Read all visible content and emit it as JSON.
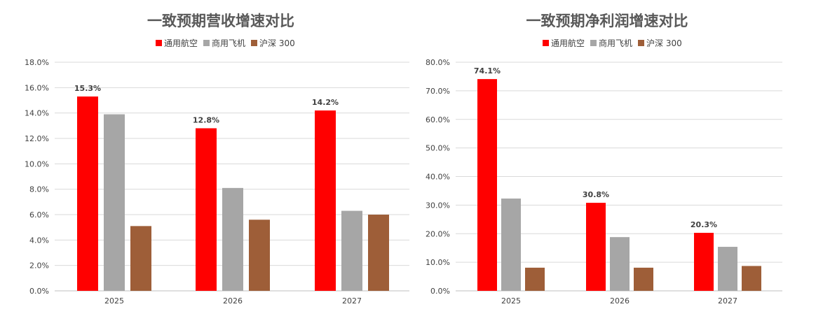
{
  "chart_data": [
    {
      "type": "bar",
      "title": "一致预期营收增速对比",
      "categories": [
        "2025",
        "2026",
        "2027"
      ],
      "series": [
        {
          "name": "通用航空",
          "values": [
            15.3,
            12.8,
            14.2
          ],
          "color": "#ff0000",
          "labels": [
            "15.3%",
            "12.8%",
            "14.2%"
          ]
        },
        {
          "name": "商用飞机",
          "values": [
            13.9,
            8.1,
            6.3
          ],
          "color": "#a6a6a6",
          "labels": [
            "",
            "",
            ""
          ]
        },
        {
          "name": "沪深 300",
          "values": [
            5.1,
            5.6,
            6.0
          ],
          "color": "#9e5e38",
          "labels": [
            "",
            "",
            ""
          ]
        }
      ],
      "ylim": [
        0,
        18
      ],
      "yticks": [
        "0.0%",
        "2.0%",
        "4.0%",
        "6.0%",
        "8.0%",
        "10.0%",
        "12.0%",
        "14.0%",
        "16.0%",
        "18.0%"
      ],
      "grid": true,
      "legend": "top-center"
    },
    {
      "type": "bar",
      "title": "一致预期净利润增速对比",
      "categories": [
        "2025",
        "2026",
        "2027"
      ],
      "series": [
        {
          "name": "通用航空",
          "values": [
            74.1,
            30.8,
            20.3
          ],
          "color": "#ff0000",
          "labels": [
            "74.1%",
            "30.8%",
            "20.3%"
          ]
        },
        {
          "name": "商用飞机",
          "values": [
            32.3,
            18.8,
            15.4
          ],
          "color": "#a6a6a6",
          "labels": [
            "",
            "",
            ""
          ]
        },
        {
          "name": "沪深 300",
          "values": [
            8.1,
            8.1,
            8.7
          ],
          "color": "#9e5e38",
          "labels": [
            "",
            "",
            ""
          ]
        }
      ],
      "ylim": [
        0,
        80
      ],
      "yticks": [
        "0.0%",
        "10.0%",
        "20.0%",
        "30.0%",
        "40.0%",
        "50.0%",
        "60.0%",
        "70.0%",
        "80.0%"
      ],
      "grid": true,
      "legend": "top-center"
    }
  ]
}
